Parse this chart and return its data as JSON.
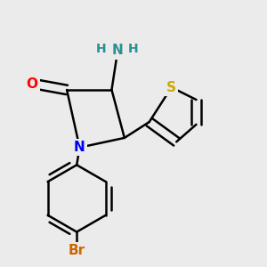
{
  "bg_color": "#ebebeb",
  "atom_colors": {
    "C": "#000000",
    "N": "#0000ff",
    "O": "#ff0000",
    "S": "#ccaa00",
    "Br": "#cc6600",
    "NH2": "#2a9090"
  },
  "bond_color": "#000000",
  "bond_width": 1.8,
  "font_size": 11
}
